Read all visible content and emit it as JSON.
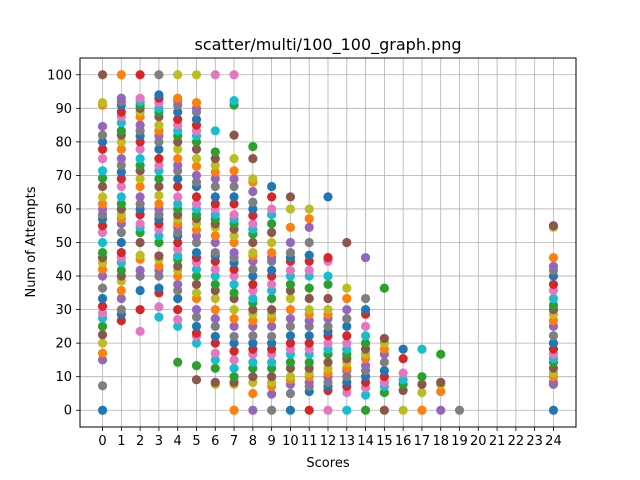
{
  "chart_data": {
    "type": "scatter",
    "title": "scatter/multi/100_100_graph.png",
    "xlabel": "Scores",
    "ylabel": "Num of Attempts",
    "xlim": [
      -1.2,
      25.2
    ],
    "ylim": [
      -5,
      105
    ],
    "x_ticks": [
      0,
      1,
      2,
      3,
      4,
      5,
      6,
      7,
      8,
      9,
      10,
      11,
      12,
      13,
      14,
      15,
      16,
      17,
      18,
      19,
      20,
      21,
      22,
      23,
      24
    ],
    "y_ticks": [
      0,
      10,
      20,
      30,
      40,
      50,
      60,
      70,
      80,
      90,
      100
    ],
    "grid": true,
    "legend": "none",
    "series_colors": [
      "#1f77b4",
      "#ff7f0e",
      "#2ca02c",
      "#d62728",
      "#9467bd",
      "#8c564b",
      "#e377c2",
      "#7f7f7f",
      "#bcbd22",
      "#17becf"
    ],
    "columns": [
      {
        "x": 0,
        "y": [
          0,
          7.3,
          15,
          17,
          20,
          22.5,
          25,
          27.5,
          29,
          31,
          33.3,
          36.4,
          40,
          42,
          44,
          45.5,
          47,
          50,
          53,
          55,
          57,
          58.3,
          60,
          61.5,
          63.6,
          66.7,
          69.2,
          71.4,
          75,
          77.8,
          80,
          82,
          84.6,
          91,
          91.7,
          100
        ]
      },
      {
        "x": 1,
        "y": [
          26.7,
          28.6,
          30,
          33.3,
          35.7,
          38.5,
          40,
          41.7,
          44,
          45.5,
          47,
          50,
          53,
          55.6,
          57.1,
          58.3,
          60,
          61.5,
          63.6,
          66.7,
          69,
          71,
          73,
          75,
          77.8,
          80,
          82,
          83.3,
          85.7,
          87.5,
          88.9,
          90.9,
          92,
          93,
          100
        ]
      },
      {
        "x": 2,
        "y": [
          23.5,
          30,
          35.7,
          40,
          41.7,
          45,
          46.2,
          50,
          53,
          54.5,
          55.6,
          58.3,
          60,
          61.5,
          63.6,
          66.7,
          69,
          71.4,
          73,
          75,
          77.8,
          80,
          81.8,
          83.3,
          85,
          87.5,
          88.9,
          90,
          91,
          92,
          93,
          100
        ]
      },
      {
        "x": 3,
        "y": [
          27.8,
          30.8,
          35,
          36.4,
          40,
          41.7,
          43,
          45,
          46,
          50,
          52,
          54,
          55.6,
          57,
          58.3,
          60,
          61.5,
          64,
          66.7,
          69,
          71.4,
          73,
          75,
          77.8,
          80,
          81.8,
          83.3,
          85,
          87.5,
          88.9,
          90,
          91.7,
          93,
          94,
          100
        ]
      },
      {
        "x": 4,
        "y": [
          14.3,
          25,
          27,
          30,
          33.3,
          35.7,
          37.5,
          40,
          41.7,
          43,
          45,
          46,
          48,
          50,
          52,
          53,
          54.5,
          55.6,
          57,
          58.3,
          60,
          61.5,
          63.6,
          66.7,
          69,
          71.4,
          73,
          75,
          77.8,
          80,
          81.8,
          83.3,
          85,
          86.7,
          88.9,
          90.9,
          92.3,
          93,
          100
        ]
      },
      {
        "x": 5,
        "y": [
          9.1,
          13.3,
          20,
          22,
          23,
          25,
          27.8,
          30,
          33.3,
          35,
          37.5,
          40,
          42,
          44,
          45.5,
          47,
          50,
          52,
          53.8,
          55.6,
          57.1,
          58.3,
          60,
          61.5,
          63.6,
          66.7,
          68,
          70,
          72.7,
          75,
          77.8,
          80,
          81.8,
          83.3,
          85,
          86.7,
          88.9,
          90,
          91.7,
          100
        ]
      },
      {
        "x": 6,
        "y": [
          7.7,
          8.3,
          12.5,
          15,
          17,
          20,
          22,
          25,
          27.3,
          30,
          33.3,
          35.7,
          37.5,
          40,
          42,
          44.4,
          46,
          47,
          50,
          52,
          54.5,
          55.6,
          57,
          58.3,
          60,
          61.5,
          63.6,
          66.7,
          69,
          71,
          73,
          75,
          77,
          83.3,
          100
        ]
      },
      {
        "x": 7,
        "y": [
          0,
          7.7,
          8.3,
          10,
          12.5,
          15,
          17.6,
          20,
          22,
          25,
          27.3,
          30,
          33.3,
          35,
          37.5,
          40,
          42,
          44,
          45.5,
          47,
          50,
          52,
          54,
          55.6,
          57,
          58.3,
          61.5,
          63.6,
          66.7,
          69,
          71.4,
          75,
          82,
          91,
          92.3,
          100
        ]
      },
      {
        "x": 8,
        "y": [
          0,
          5,
          8.3,
          10,
          12.5,
          14.3,
          16.7,
          18.2,
          20,
          22.2,
          25,
          26.7,
          28.6,
          30,
          32,
          33.3,
          35.7,
          37.5,
          40,
          42,
          44.4,
          46,
          47,
          50,
          52.5,
          54,
          55.6,
          58,
          60,
          62,
          65.2,
          68,
          69,
          75,
          78.6
        ]
      },
      {
        "x": 9,
        "y": [
          0,
          4.8,
          7.1,
          8.3,
          10,
          12.5,
          14.3,
          16.7,
          18.2,
          20,
          22,
          25,
          27.3,
          28.6,
          30,
          33.3,
          35.7,
          37.5,
          40,
          41.7,
          44.4,
          45.5,
          47,
          50,
          53,
          55.6,
          58.3,
          60,
          63.6,
          66.7
        ]
      },
      {
        "x": 10,
        "y": [
          0,
          5,
          7.7,
          9.1,
          10,
          12.5,
          14.3,
          16.7,
          18.2,
          20,
          22.2,
          25,
          27.3,
          30,
          33.3,
          35.7,
          37.5,
          40,
          41.7,
          44.4,
          45.5,
          47,
          50,
          54.5,
          60,
          63.6
        ]
      },
      {
        "x": 11,
        "y": [
          0,
          5.6,
          7.1,
          8.3,
          10,
          11.1,
          12.5,
          14.3,
          16.7,
          18.2,
          20,
          22.2,
          25,
          26.7,
          28.6,
          30,
          33.3,
          36.4,
          40,
          41.7,
          44.4,
          46.2,
          50,
          54.5,
          57.1,
          60
        ]
      },
      {
        "x": 12,
        "y": [
          0,
          5.9,
          7.1,
          8.3,
          10,
          11.1,
          12.5,
          14.3,
          16.7,
          18.2,
          20,
          22.2,
          23.5,
          25,
          27.3,
          28.6,
          30,
          33.3,
          37.5,
          40,
          44.4,
          45.5,
          63.6
        ]
      },
      {
        "x": 13,
        "y": [
          0,
          5.3,
          7.1,
          8.3,
          10,
          11.8,
          12.5,
          14.3,
          15.4,
          16.7,
          18.2,
          20,
          22.2,
          25,
          27.3,
          30,
          33.3,
          36.4,
          50
        ]
      },
      {
        "x": 14,
        "y": [
          0,
          4.5,
          6.7,
          8.3,
          10,
          11.8,
          13.3,
          15.4,
          16.7,
          18.2,
          20,
          22.2,
          25,
          28.6,
          30,
          33.3,
          45.5
        ]
      },
      {
        "x": 15,
        "y": [
          0,
          5.3,
          7.1,
          8.3,
          10,
          11.8,
          14.3,
          16.7,
          18.2,
          20,
          21.4,
          36.4
        ]
      },
      {
        "x": 16,
        "y": [
          0,
          5.9,
          7.7,
          9.1,
          11.1,
          15.4,
          18.2
        ]
      },
      {
        "x": 17,
        "y": [
          0,
          5.3,
          7.7,
          10,
          18.2
        ]
      },
      {
        "x": 18,
        "y": [
          0,
          5.6,
          7.7,
          8.3,
          16.7
        ]
      },
      {
        "x": 19,
        "y": [
          0
        ]
      },
      {
        "x": 24,
        "y": [
          0,
          7.7,
          8.3,
          10,
          11.1,
          12.5,
          14.3,
          15.4,
          16.7,
          18.2,
          20,
          22.2,
          25,
          26.7,
          28.6,
          30,
          31.3,
          33.3,
          35.7,
          37.5,
          40,
          41.7,
          42.9,
          45.5,
          54.5,
          55
        ]
      }
    ]
  }
}
